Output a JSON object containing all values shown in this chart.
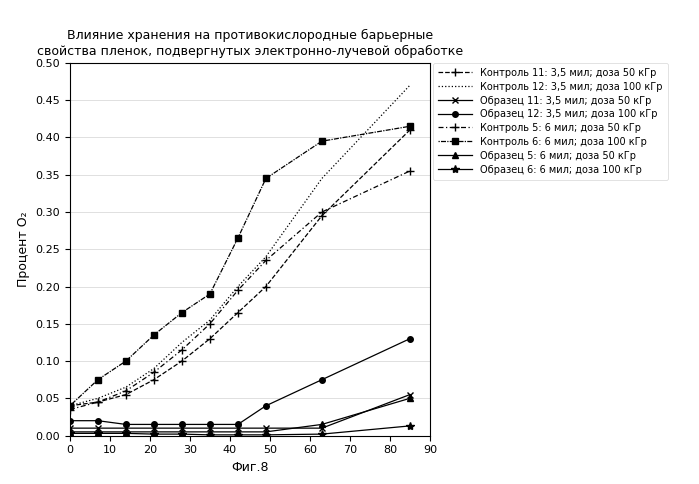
{
  "title_line1": "Влияние хранения на противокислородные барьерные",
  "title_line2": "свойства пленок, подвергнутых электронно-лучевой обработке",
  "xlabel": "Фиг.8",
  "ylabel": "Процент O₂",
  "xlim": [
    0,
    90
  ],
  "ylim": [
    0,
    0.5
  ],
  "yticks": [
    0,
    0.05,
    0.1,
    0.15,
    0.2,
    0.25,
    0.3,
    0.35,
    0.4,
    0.45,
    0.5
  ],
  "xticks": [
    0,
    10,
    20,
    30,
    40,
    50,
    60,
    70,
    80,
    90
  ],
  "series": [
    {
      "label": "Контроль 11: 3,5 мил; доза 50 кГр",
      "x": [
        0,
        7,
        14,
        21,
        28,
        35,
        42,
        49,
        63,
        85
      ],
      "y": [
        0.04,
        0.045,
        0.055,
        0.075,
        0.1,
        0.13,
        0.165,
        0.2,
        0.295,
        0.41
      ],
      "ls_type": "dash_plus"
    },
    {
      "label": "Контроль 12: 3,5 мил; доза 100 кГр",
      "x": [
        0,
        7,
        14,
        21,
        28,
        35,
        42,
        49,
        63,
        85
      ],
      "y": [
        0.04,
        0.05,
        0.065,
        0.09,
        0.125,
        0.155,
        0.2,
        0.24,
        0.345,
        0.47
      ],
      "ls_type": "dots_only"
    },
    {
      "label": "Образец 11: 3,5 мил; доза 50 кГр",
      "x": [
        0,
        7,
        14,
        21,
        28,
        35,
        42,
        49,
        63,
        85
      ],
      "y": [
        0.01,
        0.01,
        0.01,
        0.01,
        0.01,
        0.01,
        0.01,
        0.01,
        0.01,
        0.055
      ],
      "ls_type": "solid_x"
    },
    {
      "label": "Образец 12: 3,5 мил; доза 100 кГр",
      "x": [
        0,
        7,
        14,
        21,
        28,
        35,
        42,
        49,
        63,
        85
      ],
      "y": [
        0.02,
        0.02,
        0.015,
        0.015,
        0.015,
        0.015,
        0.015,
        0.04,
        0.075,
        0.13
      ],
      "ls_type": "solid_circle"
    },
    {
      "label": "Контроль 5: 6 мил; доза 50 кГр",
      "x": [
        0,
        7,
        14,
        21,
        28,
        35,
        42,
        49,
        63,
        85
      ],
      "y": [
        0.035,
        0.045,
        0.06,
        0.085,
        0.115,
        0.15,
        0.195,
        0.235,
        0.3,
        0.355
      ],
      "ls_type": "dashdot_plus"
    },
    {
      "label": "Контроль 6: 6 мил; доза 100 кГр",
      "x": [
        0,
        7,
        14,
        21,
        28,
        35,
        42,
        49,
        63,
        85
      ],
      "y": [
        0.04,
        0.075,
        0.1,
        0.135,
        0.165,
        0.19,
        0.265,
        0.345,
        0.395,
        0.415
      ],
      "ls_type": "dot_dash_sq"
    },
    {
      "label": "Образец 5: 6 мил; доза 50 кГр",
      "x": [
        0,
        7,
        14,
        21,
        28,
        35,
        42,
        49,
        63,
        85
      ],
      "y": [
        0.005,
        0.005,
        0.005,
        0.005,
        0.005,
        0.005,
        0.005,
        0.005,
        0.015,
        0.05
      ],
      "ls_type": "solid_triangle"
    },
    {
      "label": "Образец 6: 6 мил; доза 100 кГр",
      "x": [
        0,
        7,
        14,
        21,
        28,
        35,
        42,
        49,
        63,
        85
      ],
      "y": [
        0.003,
        0.003,
        0.003,
        0.002,
        0.002,
        0.001,
        0.001,
        0.001,
        0.002,
        0.013
      ],
      "ls_type": "solid_star"
    }
  ]
}
